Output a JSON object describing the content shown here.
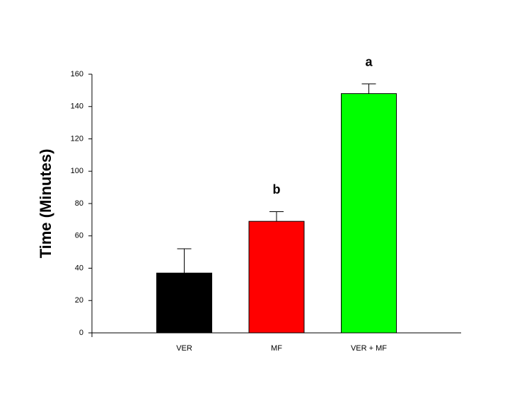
{
  "chart_data": {
    "type": "bar",
    "ylabel": "Time (Minutes)",
    "categories": [
      "VER",
      "MF",
      "VER + MF"
    ],
    "values": [
      37,
      69,
      148
    ],
    "errors": [
      15,
      6,
      6
    ],
    "annotations": [
      null,
      "b",
      "a"
    ],
    "colors": [
      "#000000",
      "#ff0000",
      "#00ff00"
    ],
    "ylim": [
      0,
      160
    ],
    "yticks": [
      0,
      20,
      40,
      60,
      80,
      100,
      120,
      140,
      160
    ]
  }
}
